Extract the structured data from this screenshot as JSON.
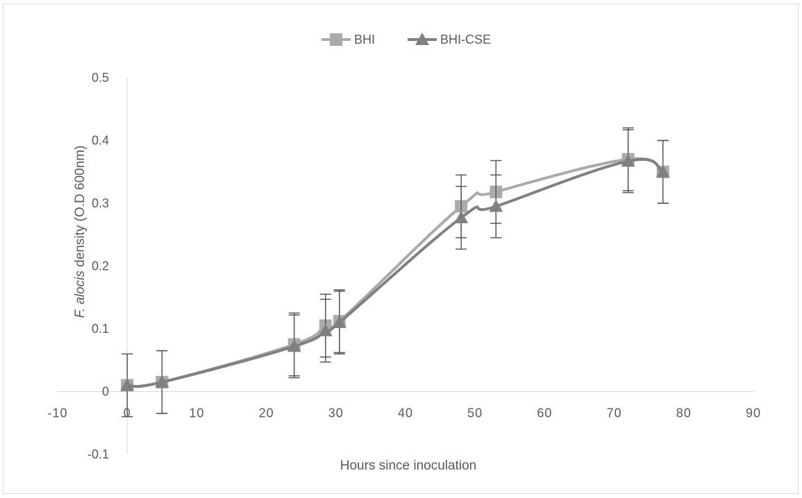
{
  "chart_data": {
    "type": "line",
    "title": "",
    "xlabel": "Hours since inoculation",
    "ylabel": {
      "italic": "F. alocis",
      "rest": " density (O.D 600nm)"
    },
    "xlim": [
      -10,
      90
    ],
    "ylim": [
      -0.1,
      0.5
    ],
    "xticks": [
      "-10",
      "0",
      "10",
      "20",
      "30",
      "40",
      "50",
      "60",
      "70",
      "80",
      "90"
    ],
    "yticks": [
      "-0.1",
      "0",
      "0.1",
      "0.2",
      "0.3",
      "0.4",
      "0.5"
    ],
    "grid": false,
    "legend_position": "top",
    "legend": [
      "BHI",
      "BHI-CSE"
    ],
    "series": [
      {
        "name": "BHI",
        "marker": "square",
        "color": "#aaaaaa",
        "x": [
          0,
          5,
          24,
          28.5,
          30.5,
          48,
          53,
          72,
          77
        ],
        "y": [
          0.01,
          0.015,
          0.075,
          0.105,
          0.112,
          0.295,
          0.318,
          0.37,
          0.35
        ],
        "error": [
          0.05,
          0.05,
          0.05,
          0.05,
          0.05,
          0.05,
          0.05,
          0.05,
          0.05
        ]
      },
      {
        "name": "BHI-CSE",
        "marker": "triangle",
        "color": "#808080",
        "x": [
          0,
          5,
          24,
          28.5,
          30.5,
          48,
          53,
          72,
          77
        ],
        "y": [
          0.01,
          0.015,
          0.072,
          0.097,
          0.11,
          0.277,
          0.295,
          0.367,
          0.35
        ],
        "error": [
          0.05,
          0.05,
          0.05,
          0.05,
          0.05,
          0.05,
          0.05,
          0.05,
          0.05
        ]
      }
    ]
  }
}
